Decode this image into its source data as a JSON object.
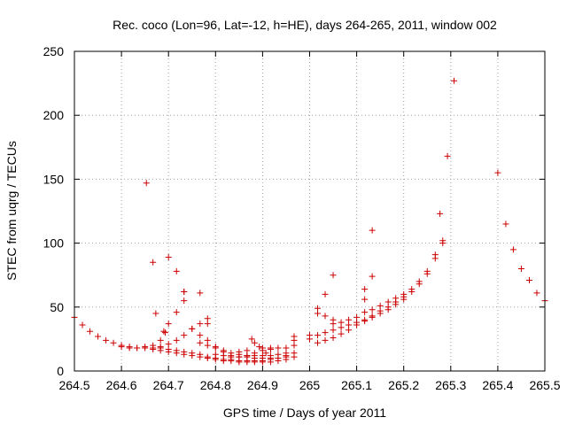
{
  "chart_data": {
    "type": "scatter",
    "title": "Rec. coco (Lon=96, Lat=-12, h=HE), days 264-265, 2011, window 002",
    "xlabel": "GPS time / Days of year 2011",
    "ylabel": "STEC from uqrg / TECUs",
    "xlim": [
      264.5,
      265.5
    ],
    "ylim": [
      0,
      250
    ],
    "x_ticks": [
      264.5,
      264.6,
      264.7,
      264.8,
      264.9,
      265,
      265.1,
      265.2,
      265.3,
      265.4,
      265.5
    ],
    "x_tick_labels": [
      "264.5",
      "264.6",
      "264.7",
      "264.8",
      "264.9",
      "265",
      "265.1",
      "265.2",
      "265.3",
      "265.4",
      "265.5"
    ],
    "y_ticks": [
      0,
      50,
      100,
      150,
      200,
      250
    ],
    "y_tick_labels": [
      "0",
      "50",
      "100",
      "150",
      "200",
      "250"
    ],
    "grid": true,
    "marker": "+",
    "color": "#cc0000",
    "series": [
      {
        "points": [
          [
            264.5,
            42
          ],
          [
            264.517,
            36
          ],
          [
            264.533,
            31
          ],
          [
            264.55,
            27
          ],
          [
            264.567,
            24
          ],
          [
            264.583,
            22
          ],
          [
            264.6,
            20
          ],
          [
            264.617,
            19
          ],
          [
            264.633,
            18
          ],
          [
            264.65,
            18
          ],
          [
            264.667,
            18
          ],
          [
            264.683,
            19
          ],
          [
            264.7,
            21
          ],
          [
            264.717,
            24
          ],
          [
            264.733,
            28
          ],
          [
            264.75,
            33
          ],
          [
            264.767,
            37
          ],
          [
            264.783,
            41
          ],
          [
            264.6,
            19
          ],
          [
            264.617,
            18
          ],
          [
            264.633,
            18
          ],
          [
            264.65,
            19
          ],
          [
            264.667,
            20
          ],
          [
            264.683,
            24
          ],
          [
            264.693,
            30
          ],
          [
            264.7,
            37
          ],
          [
            264.717,
            46
          ],
          [
            264.733,
            55
          ],
          [
            264.733,
            62
          ],
          [
            264.667,
            17
          ],
          [
            264.683,
            16
          ],
          [
            264.7,
            15
          ],
          [
            264.717,
            14
          ],
          [
            264.733,
            13
          ],
          [
            264.75,
            12
          ],
          [
            264.767,
            11
          ],
          [
            264.783,
            10
          ],
          [
            264.8,
            9
          ],
          [
            264.817,
            8
          ],
          [
            264.833,
            8
          ],
          [
            264.85,
            7
          ],
          [
            264.867,
            7
          ],
          [
            264.883,
            7
          ],
          [
            264.9,
            7
          ],
          [
            264.917,
            7
          ],
          [
            264.933,
            8
          ],
          [
            264.95,
            9
          ],
          [
            264.967,
            11
          ],
          [
            264.683,
            18
          ],
          [
            264.7,
            17
          ],
          [
            264.717,
            16
          ],
          [
            264.733,
            15
          ],
          [
            264.75,
            14
          ],
          [
            264.767,
            13
          ],
          [
            264.783,
            11
          ],
          [
            264.8,
            10
          ],
          [
            264.817,
            9
          ],
          [
            264.833,
            9
          ],
          [
            264.85,
            8
          ],
          [
            264.867,
            8
          ],
          [
            264.883,
            8
          ],
          [
            264.9,
            8
          ],
          [
            264.917,
            9
          ],
          [
            264.933,
            10
          ],
          [
            264.95,
            12
          ],
          [
            264.967,
            14
          ],
          [
            264.75,
            33
          ],
          [
            264.767,
            28
          ],
          [
            264.783,
            24
          ],
          [
            264.8,
            19
          ],
          [
            264.817,
            15
          ],
          [
            264.833,
            12
          ],
          [
            264.85,
            11
          ],
          [
            264.867,
            12
          ],
          [
            264.883,
            14
          ],
          [
            264.9,
            16
          ],
          [
            264.917,
            18
          ],
          [
            264.933,
            18
          ],
          [
            264.95,
            18
          ],
          [
            264.967,
            20
          ],
          [
            264.967,
            24
          ],
          [
            264.967,
            27
          ],
          [
            264.767,
            22
          ],
          [
            264.783,
            20
          ],
          [
            264.8,
            18
          ],
          [
            264.817,
            16
          ],
          [
            264.833,
            14
          ],
          [
            264.85,
            13
          ],
          [
            264.867,
            12
          ],
          [
            264.883,
            12
          ],
          [
            264.9,
            12
          ],
          [
            264.917,
            12
          ],
          [
            264.933,
            13
          ],
          [
            264.95,
            14
          ],
          [
            264.8,
            13
          ],
          [
            264.817,
            12
          ],
          [
            264.833,
            11
          ],
          [
            264.85,
            11
          ],
          [
            264.867,
            11
          ],
          [
            264.883,
            10
          ],
          [
            264.9,
            10
          ],
          [
            264.917,
            10
          ],
          [
            264.933,
            10
          ],
          [
            264.95,
            11
          ],
          [
            264.85,
            15
          ],
          [
            264.867,
            16
          ],
          [
            264.883,
            22
          ],
          [
            264.9,
            18
          ],
          [
            264.917,
            17
          ],
          [
            264.877,
            25
          ],
          [
            264.893,
            19
          ],
          [
            264.907,
            14
          ],
          [
            264.653,
            147
          ],
          [
            264.667,
            85
          ],
          [
            264.673,
            45
          ],
          [
            264.69,
            31
          ],
          [
            264.7,
            89
          ],
          [
            264.717,
            78
          ],
          [
            264.733,
            62
          ],
          [
            264.767,
            61
          ],
          [
            264.783,
            37
          ],
          [
            265.0,
            25
          ],
          [
            265.0,
            28
          ],
          [
            265.017,
            45
          ],
          [
            265.017,
            49
          ],
          [
            265.033,
            43
          ],
          [
            265.033,
            60
          ],
          [
            265.05,
            75
          ],
          [
            265.05,
            40
          ],
          [
            265.017,
            22
          ],
          [
            265.033,
            24
          ],
          [
            265.05,
            26
          ],
          [
            265.067,
            29
          ],
          [
            265.083,
            32
          ],
          [
            265.1,
            36
          ],
          [
            265.117,
            39
          ],
          [
            265.133,
            42
          ],
          [
            265.15,
            45
          ],
          [
            265.167,
            48
          ],
          [
            265.183,
            52
          ],
          [
            265.2,
            56
          ],
          [
            265.217,
            62
          ],
          [
            265.233,
            68
          ],
          [
            265.25,
            76
          ],
          [
            265.267,
            88
          ],
          [
            265.283,
            102
          ],
          [
            265.017,
            28
          ],
          [
            265.033,
            30
          ],
          [
            265.05,
            32
          ],
          [
            265.067,
            34
          ],
          [
            265.083,
            36
          ],
          [
            265.1,
            38
          ],
          [
            265.117,
            40
          ],
          [
            265.133,
            43
          ],
          [
            265.15,
            47
          ],
          [
            265.167,
            50
          ],
          [
            265.183,
            54
          ],
          [
            265.2,
            58
          ],
          [
            265.217,
            64
          ],
          [
            265.233,
            70
          ],
          [
            265.25,
            78
          ],
          [
            265.267,
            91
          ],
          [
            265.283,
            100
          ],
          [
            265.05,
            37
          ],
          [
            265.067,
            38
          ],
          [
            265.083,
            40
          ],
          [
            265.1,
            42
          ],
          [
            265.117,
            46
          ],
          [
            265.133,
            48
          ],
          [
            265.15,
            51
          ],
          [
            265.167,
            54
          ],
          [
            265.183,
            57
          ],
          [
            265.2,
            60
          ],
          [
            265.117,
            56
          ],
          [
            265.133,
            74
          ],
          [
            265.133,
            110
          ],
          [
            265.117,
            64
          ],
          [
            265.277,
            123
          ],
          [
            265.293,
            168
          ],
          [
            265.307,
            227
          ],
          [
            265.4,
            155
          ],
          [
            265.417,
            115
          ],
          [
            265.433,
            95
          ],
          [
            265.45,
            80
          ],
          [
            265.467,
            71
          ],
          [
            265.483,
            61
          ],
          [
            265.5,
            55
          ]
        ]
      }
    ]
  }
}
